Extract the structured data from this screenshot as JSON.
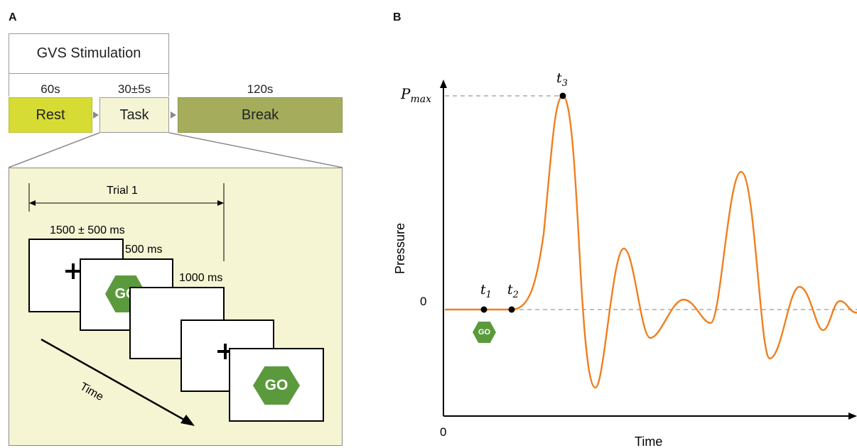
{
  "panel_a": {
    "label": "A",
    "gvs_label": "GVS Stimulation",
    "durations": {
      "rest": "60s",
      "task": "30±5s",
      "break": "120s"
    },
    "blocks": {
      "rest": "Rest",
      "task": "Task",
      "break": "Break"
    },
    "colors": {
      "rest": "#d7dc35",
      "task": "#f5f5d6",
      "break": "#a5ad5c",
      "zoom_panel": "#f5f5d3",
      "go_sign": "#5b9a3c"
    },
    "trial": {
      "label": "Trial 1",
      "fixation_time": "1500 ± 500 ms",
      "go_time": "500 ms",
      "blank_time": "1000 ms",
      "time_label": "Time",
      "go_text": "GO"
    }
  },
  "panel_b": {
    "label": "B",
    "y_label": "Pressure",
    "x_label": "Time",
    "pmax_label": "P",
    "pmax_sub": "max",
    "zero_y": "0",
    "zero_x": "0",
    "t1": "t",
    "t1_sub": "1",
    "t2": "t",
    "t2_sub": "2",
    "t3": "t",
    "t3_sub": "3",
    "go_text": "GO",
    "curve_color": "#f07f1e"
  }
}
